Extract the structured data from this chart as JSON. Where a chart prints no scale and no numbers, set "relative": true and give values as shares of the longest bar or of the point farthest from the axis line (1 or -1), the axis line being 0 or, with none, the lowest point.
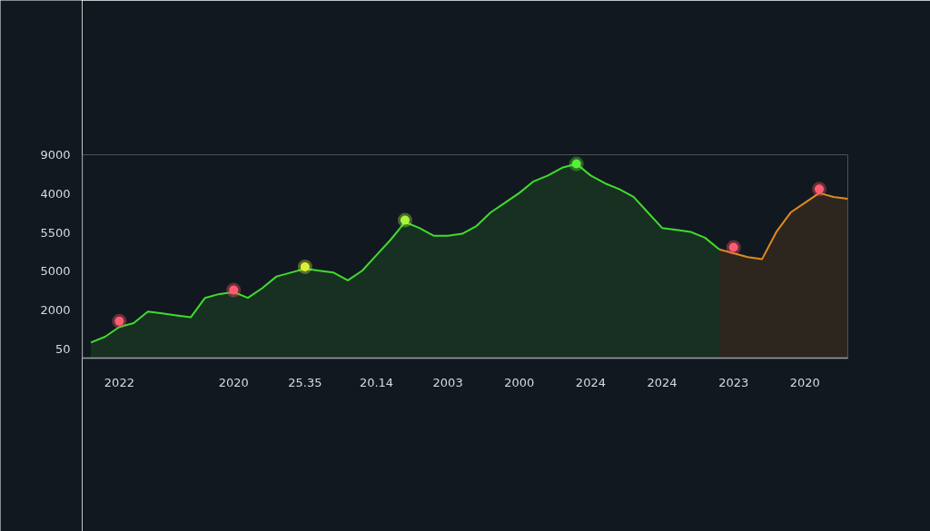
{
  "chart_data": {
    "type": "area",
    "relative": true,
    "categories": [
      null,
      null,
      "2022",
      null,
      null,
      null,
      null,
      null,
      null,
      null,
      "2020",
      null,
      null,
      null,
      null,
      "25.35",
      null,
      null,
      null,
      null,
      "20.14",
      null,
      null,
      null,
      null,
      "2003",
      null,
      null,
      null,
      null,
      "2000",
      null,
      null,
      null,
      null,
      "2024",
      null,
      null,
      null,
      null,
      "2024",
      null,
      null,
      null,
      null,
      "2023",
      null,
      null,
      null,
      null,
      "2020",
      null,
      null,
      null
    ],
    "annotations": [
      "50",
      "2000",
      "5000",
      "5500",
      "4000",
      "9000"
    ],
    "series": [
      {
        "color": "#3fdc2c",
        "values": [
          0.08,
          0.11,
          0.16,
          0.18,
          0.24,
          0.23,
          0.22,
          0.21,
          0.31,
          0.33,
          0.34,
          0.31,
          0.36,
          0.42,
          0.44,
          0.46,
          0.45,
          0.44,
          0.4,
          0.45,
          0.53,
          0.61,
          0.7,
          0.67,
          0.63,
          0.63,
          0.64,
          0.68,
          0.75,
          0.8,
          0.85,
          0.91,
          0.94,
          0.98,
          1.0,
          0.94,
          0.9,
          0.87,
          0.83,
          0.75,
          0.67,
          0.66,
          0.65,
          0.62,
          0.56,
          null,
          null,
          null,
          null,
          null,
          null,
          null,
          null,
          null
        ]
      },
      {
        "color": "#e08a1c",
        "values": [
          null,
          null,
          null,
          null,
          null,
          null,
          null,
          null,
          null,
          null,
          null,
          null,
          null,
          null,
          null,
          null,
          null,
          null,
          null,
          null,
          null,
          null,
          null,
          null,
          null,
          null,
          null,
          null,
          null,
          null,
          null,
          null,
          null,
          null,
          null,
          null,
          null,
          null,
          null,
          null,
          null,
          null,
          null,
          null,
          0.56,
          0.54,
          0.52,
          0.51,
          0.65,
          0.75,
          0.8,
          0.85,
          0.83,
          0.82
        ]
      },
      {
        "type": "scatter",
        "marker": "circle",
        "values": [
          null,
          null,
          0.19,
          null,
          null,
          null,
          null,
          null,
          null,
          null,
          0.35,
          null,
          null,
          null,
          null,
          0.47,
          null,
          null,
          null,
          null,
          null,
          null,
          0.71,
          null,
          null,
          null,
          null,
          null,
          null,
          null,
          null,
          null,
          null,
          null,
          1.0,
          null,
          null,
          null,
          null,
          null,
          null,
          null,
          null,
          null,
          null,
          0.57,
          null,
          null,
          null,
          null,
          null,
          0.87,
          null,
          null
        ],
        "colors": [
          null,
          null,
          "#ff5c70",
          null,
          null,
          null,
          null,
          null,
          null,
          null,
          "#ff5c70",
          null,
          null,
          null,
          null,
          "#d9f23a",
          null,
          null,
          null,
          null,
          null,
          null,
          "#a8f53c",
          null,
          null,
          null,
          null,
          null,
          null,
          null,
          null,
          null,
          null,
          null,
          "#57f03a",
          null,
          null,
          null,
          null,
          null,
          null,
          null,
          null,
          null,
          null,
          "#ff5c70",
          null,
          null,
          null,
          null,
          null,
          "#ff5c70",
          null,
          null
        ]
      }
    ]
  }
}
